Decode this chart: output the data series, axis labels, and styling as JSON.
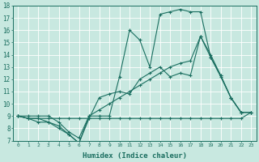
{
  "xlabel": "Humidex (Indice chaleur)",
  "xlim": [
    -0.5,
    23.5
  ],
  "ylim": [
    7,
    18
  ],
  "yticks": [
    7,
    8,
    9,
    10,
    11,
    12,
    13,
    14,
    15,
    16,
    17,
    18
  ],
  "xticks": [
    0,
    1,
    2,
    3,
    4,
    5,
    6,
    7,
    8,
    9,
    10,
    11,
    12,
    13,
    14,
    15,
    16,
    17,
    18,
    19,
    20,
    21,
    22,
    23
  ],
  "xtick_labels": [
    "0",
    "1",
    "2",
    "3",
    "4",
    "5",
    "6",
    "7",
    "8",
    "9",
    "10",
    "11",
    "12",
    "13",
    "14",
    "15",
    "16",
    "17",
    "18",
    "19",
    "20",
    "21",
    "22",
    "23"
  ],
  "bg_color": "#c8e8e0",
  "grid_color": "#e8f4f0",
  "line_color": "#1a6e60",
  "lines": [
    {
      "x": [
        0,
        1,
        2,
        3,
        4,
        5,
        6,
        7,
        8,
        9,
        10,
        11,
        12,
        13,
        14,
        15,
        16,
        17,
        18,
        19,
        20,
        21,
        22,
        23
      ],
      "y": [
        9,
        8.8,
        8.8,
        8.8,
        8.8,
        8.8,
        8.8,
        8.8,
        8.8,
        8.8,
        8.8,
        8.8,
        8.8,
        8.8,
        8.8,
        8.8,
        8.8,
        8.8,
        8.8,
        8.8,
        8.8,
        8.8,
        8.8,
        9.3
      ]
    },
    {
      "x": [
        0,
        1,
        2,
        3,
        4,
        5,
        6,
        7,
        8,
        9,
        10,
        11,
        12,
        13,
        14,
        15,
        16,
        17,
        18,
        19,
        20,
        21,
        22,
        23
      ],
      "y": [
        9,
        9,
        9,
        9,
        8.5,
        7.7,
        7.2,
        9,
        9.5,
        10,
        10.5,
        11,
        11.5,
        12,
        12.5,
        13,
        13.3,
        13.5,
        15.5,
        13.8,
        12.2,
        10.5,
        9.3,
        9.3
      ]
    },
    {
      "x": [
        0,
        1,
        2,
        3,
        4,
        5,
        6,
        7,
        8,
        9,
        10,
        11,
        12,
        13,
        14,
        15,
        16,
        17,
        18,
        19,
        20,
        21,
        22,
        23
      ],
      "y": [
        9,
        8.8,
        8.8,
        8.5,
        8.2,
        7.5,
        6.8,
        9.0,
        9.0,
        9.0,
        12.2,
        16.0,
        15.2,
        13.0,
        17.3,
        17.5,
        17.7,
        17.5,
        17.5,
        13.8,
        12.3,
        10.5,
        9.3,
        9.3
      ]
    },
    {
      "x": [
        0,
        1,
        2,
        3,
        4,
        5,
        6,
        7,
        8,
        9,
        10,
        11,
        12,
        13,
        14,
        15,
        16,
        17,
        18,
        19,
        20,
        21,
        22,
        23
      ],
      "y": [
        9,
        8.8,
        8.5,
        8.5,
        8.0,
        7.5,
        6.8,
        8.8,
        10.5,
        10.8,
        11.0,
        10.8,
        12.0,
        12.5,
        13.0,
        12.2,
        12.5,
        12.3,
        15.5,
        14.0,
        12.3,
        10.5,
        9.3,
        9.3
      ]
    }
  ]
}
